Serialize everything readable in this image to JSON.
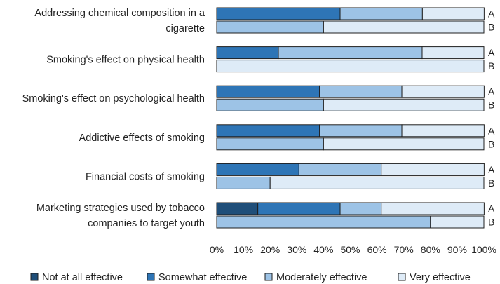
{
  "chart_data": {
    "type": "stacked-horizontal-bar",
    "title": "",
    "xlabel": "",
    "ylabel": "",
    "xlim": [
      0,
      100
    ],
    "x_ticks": [
      "0%",
      "10%",
      "20%",
      "30%",
      "40%",
      "50%",
      "60%",
      "70%",
      "80%",
      "90%",
      "100%"
    ],
    "categories": [
      "Addressing chemical composition in a cigarette",
      "Smoking's effect on physical health",
      "Smoking's effect on psychological health",
      "Addictive effects of smoking",
      "Financial costs of smoking",
      "Marketing strategies used by tobacco companies to target youth"
    ],
    "category_lines": [
      [
        "Addressing chemical composition in a",
        "cigarette"
      ],
      [
        "Smoking's effect on physical health"
      ],
      [
        "Smoking's effect on psychological health"
      ],
      [
        "Addictive effects of smoking"
      ],
      [
        "Financial costs of smoking"
      ],
      [
        "Marketing strategies used by tobacco",
        "companies to target youth"
      ]
    ],
    "groups": [
      "A",
      "B"
    ],
    "series": [
      {
        "name": "Not at all effective",
        "color": "#1f4e79",
        "A": [
          0,
          0,
          0,
          0,
          0,
          15.4
        ],
        "B": [
          0,
          0,
          0,
          0,
          0,
          0
        ]
      },
      {
        "name": "Somewhat effective",
        "color": "#2e75b6",
        "A": [
          46.2,
          23.1,
          38.5,
          38.5,
          30.8,
          30.8
        ],
        "B": [
          0,
          0,
          0,
          0,
          0,
          0
        ]
      },
      {
        "name": "Moderately effective",
        "color": "#9dc3e6",
        "A": [
          30.8,
          53.8,
          30.8,
          30.8,
          30.8,
          15.4
        ],
        "B": [
          40,
          0,
          40,
          40,
          20,
          80
        ]
      },
      {
        "name": "Very effective",
        "color": "#deebf7",
        "A": [
          23.1,
          23.1,
          30.8,
          30.8,
          38.5,
          38.5
        ],
        "B": [
          60,
          100,
          60,
          60,
          80,
          20
        ]
      }
    ],
    "legend_position": "bottom"
  }
}
